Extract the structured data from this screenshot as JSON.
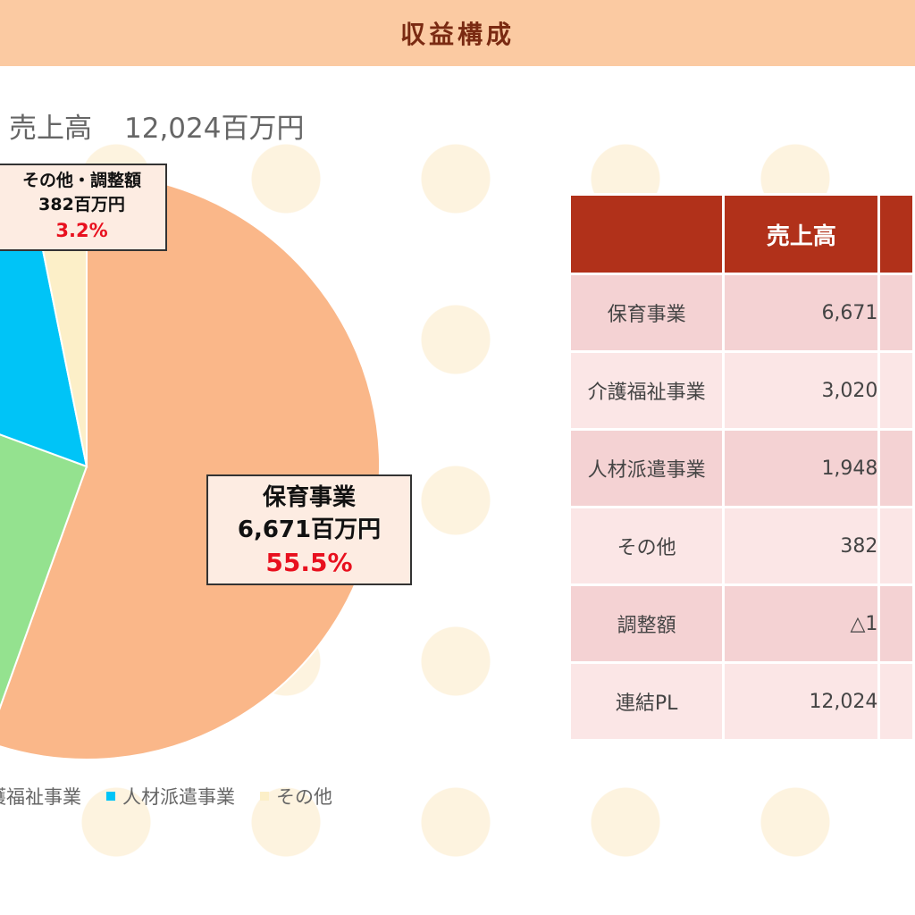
{
  "header": {
    "title": "収益構成"
  },
  "chart_data": {
    "type": "pie",
    "title": "売上高",
    "total_label": "売上高",
    "total_value": "12,024百万円",
    "slices": [
      {
        "name": "保育事業",
        "value": 6671,
        "value_label": "6,671百万円",
        "percent": 55.5,
        "percent_label": "55.5%",
        "color": "#fab789"
      },
      {
        "name": "介護福祉事業",
        "value": 3020,
        "percent": 25.1,
        "color": "#94e28f"
      },
      {
        "name": "人材派遣事業",
        "value": 1948,
        "percent": 16.2,
        "color": "#00c4f7"
      },
      {
        "name": "その他",
        "value": 382,
        "percent": 3.2,
        "color": "#fcefc8"
      }
    ],
    "callouts": {
      "main": {
        "name": "保育事業",
        "value": "6,671百万円",
        "percent": "55.5%"
      },
      "other": {
        "name": "その他・調整額",
        "value": "382百万円",
        "percent": "3.2%"
      }
    },
    "legend": [
      "介護福祉事業",
      "人材派遣事業",
      "その他"
    ],
    "legend_placement": "bottom",
    "legend_visible_text": [
      "護福祉事業",
      "人材派遣事業",
      "その他"
    ]
  },
  "table": {
    "header_sales": "売上高",
    "header_next_partial": "",
    "header_color": "#b1311a",
    "rows": [
      {
        "label": "保育事業",
        "sales": "6,671"
      },
      {
        "label": "介護福祉事業",
        "sales": "3,020"
      },
      {
        "label": "人材派遣事業",
        "sales": "1,948"
      },
      {
        "label": "その他",
        "sales": "382"
      },
      {
        "label": "調整額",
        "sales": "△1"
      },
      {
        "label": "連結PL",
        "sales": "12,024"
      }
    ]
  }
}
